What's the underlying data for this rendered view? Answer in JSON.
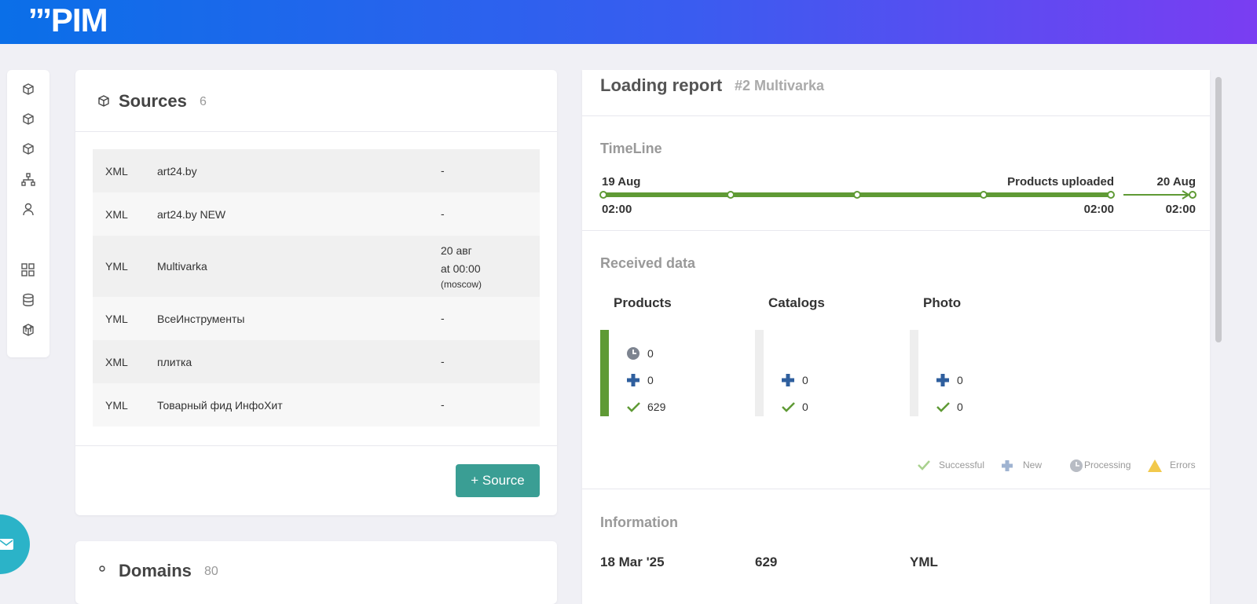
{
  "header": {
    "logo": "’’’PIM"
  },
  "sources": {
    "title": "Sources",
    "count": 6,
    "rows": [
      {
        "format": "XML",
        "name": "art24.by",
        "schedule": [
          "-"
        ]
      },
      {
        "format": "XML",
        "name": "art24.by NEW",
        "schedule": [
          "-"
        ]
      },
      {
        "format": "YML",
        "name": "Multivarka",
        "schedule": [
          "20 авг",
          "at 00:00",
          "(moscow)"
        ]
      },
      {
        "format": "YML",
        "name": "ВсеИнструменты",
        "schedule": [
          "-"
        ]
      },
      {
        "format": "XML",
        "name": "плитка",
        "schedule": [
          "-"
        ]
      },
      {
        "format": "YML",
        "name": "Товарный фид ИнфоХит",
        "schedule": [
          "-"
        ]
      }
    ],
    "button": "+ Source"
  },
  "domains": {
    "title": "Domains",
    "count": 80
  },
  "report": {
    "title": "Loading report",
    "subtitle": "#2 Multivarka",
    "timeline": {
      "title": "TimeLine",
      "start_date": "19 Aug",
      "start_time": "02:00",
      "stage": "Products uploaded",
      "stage_time": "02:00",
      "end_date": "20 Aug",
      "end_time": "02:00"
    },
    "received": {
      "title": "Received data",
      "groups": [
        {
          "name": "Products",
          "processing": 0,
          "new": 0,
          "successful": 629
        },
        {
          "name": "Catalogs",
          "new": 0,
          "successful": 0
        },
        {
          "name": "Photo",
          "new": 0,
          "successful": 0
        }
      ],
      "legend": {
        "successful": "Successful",
        "new": "New",
        "processing": "Processing",
        "errors": "Errors"
      }
    },
    "information": {
      "title": "Information",
      "values": [
        "18 Mar '25",
        629,
        "YML"
      ]
    }
  }
}
